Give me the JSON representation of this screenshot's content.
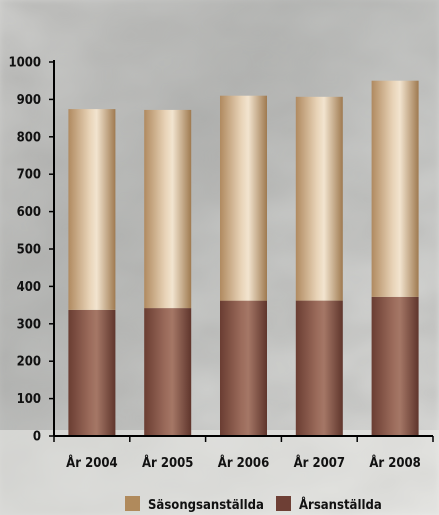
{
  "chart_data": {
    "type": "bar",
    "stacked": true,
    "title": "",
    "xlabel": "",
    "ylabel": "",
    "categories": [
      "År 2004",
      "År 2005",
      "År 2006",
      "År 2007",
      "År 2008"
    ],
    "ylim": [
      0,
      1000
    ],
    "yticks": [
      0,
      100,
      200,
      300,
      400,
      500,
      600,
      700,
      800,
      900,
      1000
    ],
    "grid": false,
    "legend_position": "bottom",
    "background": "blurred grey stone texture",
    "series": [
      {
        "name": "Årsanställda",
        "values": [
          337,
          342,
          362,
          362,
          372
        ],
        "color": "#7a4a3e"
      },
      {
        "name": "Säsongsanställda",
        "values": [
          537,
          530,
          548,
          545,
          578
        ],
        "color": "#c29d73"
      }
    ],
    "legend": [
      {
        "label": "Säsongsanställda",
        "color": "#b08a5c"
      },
      {
        "label": "Årsanställda",
        "color": "#6e3f35"
      }
    ]
  }
}
